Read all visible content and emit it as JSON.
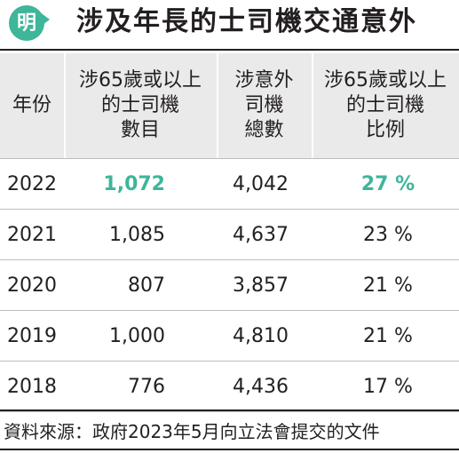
{
  "header": {
    "logo_text": "明",
    "title": "涉及年長的士司機交通意外"
  },
  "table": {
    "columns": [
      "年份",
      "涉65歲或以上\n的士司機\n數目",
      "涉意外\n司機\n總數",
      "涉65歲或以上\n的士司機\n比例"
    ],
    "rows": [
      {
        "year": "2022",
        "elderly_drivers": "1,072",
        "total_drivers": "4,042",
        "ratio": "27 %",
        "highlight": true
      },
      {
        "year": "2021",
        "elderly_drivers": "1,085",
        "total_drivers": "4,637",
        "ratio": "23 %",
        "highlight": false
      },
      {
        "year": "2020",
        "elderly_drivers": "807",
        "total_drivers": "3,857",
        "ratio": "21 %",
        "highlight": false
      },
      {
        "year": "2019",
        "elderly_drivers": "1,000",
        "total_drivers": "4,810",
        "ratio": "21 %",
        "highlight": false
      },
      {
        "year": "2018",
        "elderly_drivers": "776",
        "total_drivers": "4,436",
        "ratio": "17 %",
        "highlight": false
      }
    ]
  },
  "footer": {
    "source": "資料來源：政府2023年5月向立法會提交的文件"
  },
  "colors": {
    "accent": "#3fb59a",
    "header_bg": "#eaeaea",
    "text": "#231f20"
  }
}
